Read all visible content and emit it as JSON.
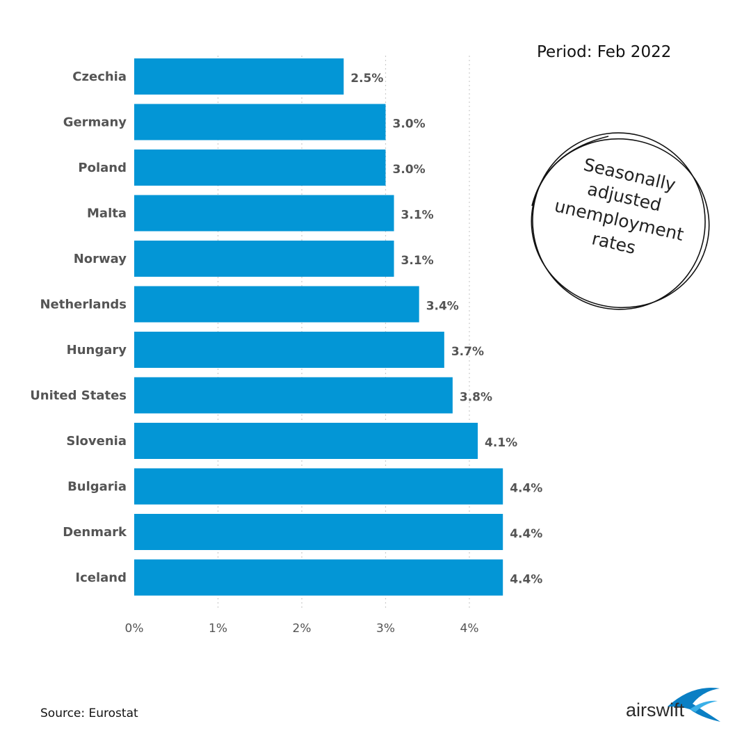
{
  "header": {
    "period": "Period: Feb 2022"
  },
  "stamp": {
    "lines": [
      "Seasonally",
      "adjusted",
      "unemployment",
      "rates"
    ]
  },
  "footer": {
    "source": "Source: Eurostat"
  },
  "logo": {
    "text": "airswift"
  },
  "colors": {
    "bar": "#0396d6",
    "text": "#545454",
    "grid": "#cccccc"
  },
  "chart_data": {
    "type": "bar",
    "orientation": "horizontal",
    "categories": [
      "Czechia",
      "Germany",
      "Poland",
      "Malta",
      "Norway",
      "Netherlands",
      "Hungary",
      "United States",
      "Slovenia",
      "Bulgaria",
      "Denmark",
      "Iceland"
    ],
    "values": [
      2.5,
      3.0,
      3.0,
      3.1,
      3.1,
      3.4,
      3.7,
      3.8,
      4.1,
      4.4,
      4.4,
      4.4
    ],
    "value_labels": [
      "2.5%",
      "3.0%",
      "3.0%",
      "3.1%",
      "3.1%",
      "3.4%",
      "3.7%",
      "3.8%",
      "4.1%",
      "4.4%",
      "4.4%",
      "4.4%"
    ],
    "x_ticks": [
      0,
      1,
      2,
      3,
      4
    ],
    "x_tick_labels": [
      "0%",
      "1%",
      "2%",
      "3%",
      "4%"
    ],
    "xlim": [
      0,
      4.7
    ],
    "grid": true,
    "legend": "none"
  }
}
